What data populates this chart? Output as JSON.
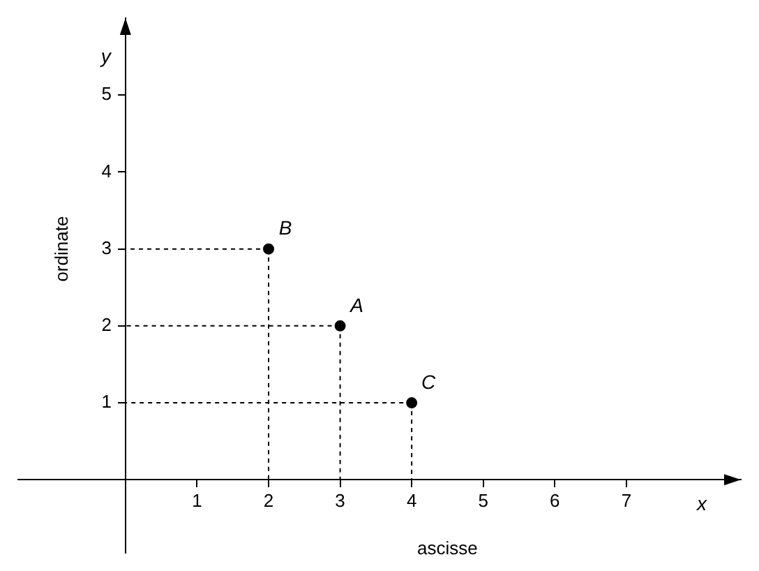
{
  "chart_data": {
    "type": "scatter",
    "xlabel": "ascisse",
    "ylabel": "ordinate",
    "x": [
      3,
      2,
      4
    ],
    "series": [
      {
        "color": "#000000",
        "values": [
          2,
          3,
          1
        ]
      }
    ],
    "xlim": [
      -1.5,
      8.6
    ],
    "ylim": [
      -0.95,
      6
    ],
    "xticks": [
      1,
      2,
      3,
      4,
      5,
      6,
      7
    ],
    "yticks": [
      1,
      2,
      3,
      4,
      5
    ],
    "grid": false,
    "legend": false,
    "marker": "circle",
    "annotations": [
      "x",
      "y",
      {
        "text": "A",
        "x": 3,
        "y": 2
      },
      {
        "text": "B",
        "x": 2,
        "y": 3
      },
      {
        "text": "C",
        "x": 4,
        "y": 1
      }
    ]
  }
}
